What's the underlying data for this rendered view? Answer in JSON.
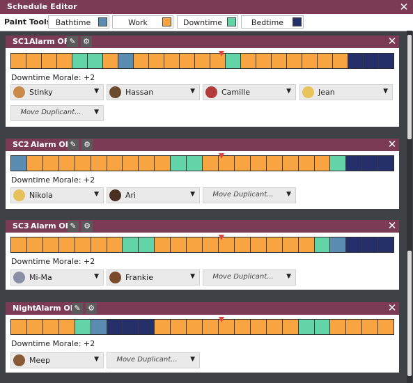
{
  "window": {
    "title": "Schedule Editor"
  },
  "toolbar": {
    "paint_label": "Paint Tools:",
    "tools": [
      {
        "label": "Bathtime",
        "color": "#5b8db3"
      },
      {
        "label": "Work",
        "color": "#f7a441"
      },
      {
        "label": "Downtime",
        "color": "#63d3a8"
      },
      {
        "label": "Bedtime",
        "color": "#25306a"
      }
    ]
  },
  "icons": {
    "edit": "pencil-icon",
    "settings": "gear-icon",
    "close": "close-icon"
  },
  "colors": {
    "B": "#5b8db3",
    "W": "#f7a441",
    "D": "#63d3a8",
    "S": "#25306a",
    "header": "#7b3b55",
    "marker": "#e34040"
  },
  "schedules": [
    {
      "name": "SC1",
      "alarm": "Alarm OFF",
      "blocks": "WWWWDDWBWWWWWWDWWWWWWWSSS",
      "morale": "Downtime Morale: +2",
      "dupes": [
        "Stinky",
        "Hassan",
        "Camille",
        "Jean"
      ],
      "move_label": "Move Duplicant..."
    },
    {
      "name": "SC2",
      "alarm": "Alarm OFF",
      "blocks": "BWWWWWWWWWDDWWWWWWWWDSSS",
      "morale": "Downtime Morale: +2",
      "dupes": [
        "Nikola",
        "Ari"
      ],
      "move_label": "Move Duplicant..."
    },
    {
      "name": "SC3",
      "alarm": "Alarm OFF",
      "blocks": "WWWWWWWDDWWWWWWWWWWDBSSS",
      "morale": "Downtime Morale: +2",
      "dupes": [
        "Mi-Ma",
        "Frankie"
      ],
      "move_label": "Move Duplicant..."
    },
    {
      "name": "Night",
      "alarm": "Alarm OFF",
      "blocks": "WWWWDBSSSWWWWWWWWWDDWWWW",
      "morale": "Downtime Morale: +2",
      "dupes": [
        "Meep"
      ],
      "move_label": "Move Duplicant..."
    }
  ]
}
